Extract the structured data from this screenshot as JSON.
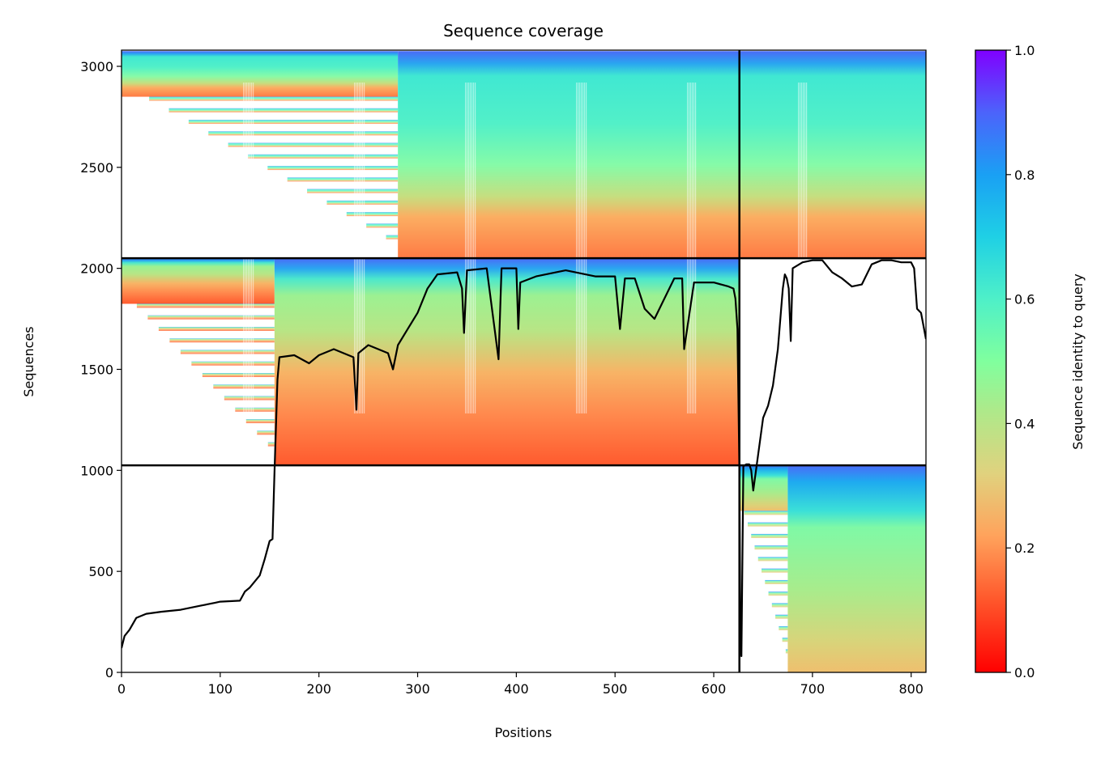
{
  "chart_data": {
    "type": "heatmap",
    "title": "Sequence coverage",
    "xlabel": "Positions",
    "ylabel": "Sequences",
    "xlim": [
      0,
      815
    ],
    "ylim": [
      0,
      3080
    ],
    "x_ticks": [
      "0",
      "100",
      "200",
      "300",
      "400",
      "500",
      "600",
      "700",
      "800"
    ],
    "y_ticks": [
      "0",
      "500",
      "1000",
      "1500",
      "2000",
      "2500",
      "3000"
    ],
    "colorbar": {
      "label": "Sequence identity to query",
      "colormap": "rainbow_r",
      "range": [
        0,
        1
      ],
      "ticks": [
        "0.0",
        "0.2",
        "0.4",
        "0.6",
        "0.8",
        "1.0"
      ]
    },
    "chain_boundary_x": 626,
    "block_boundaries_y": [
      1025,
      2050
    ],
    "blocks": [
      {
        "rows": [
          0,
          1025
        ],
        "x_range": [
          626,
          815
        ],
        "coverage_start_x": 626,
        "identity_top": 0.85,
        "identity_bottom": 0.3,
        "full_coverage_from_x": 675
      },
      {
        "rows": [
          1025,
          2050
        ],
        "x_range": [
          0,
          626
        ],
        "identity_top": 0.85,
        "identity_bottom": 0.1,
        "full_coverage_from_x": 155
      },
      {
        "rows": [
          2050,
          3075
        ],
        "x_range": [
          0,
          815
        ],
        "identity_top": 0.85,
        "identity_bottom": 0.15,
        "full_coverage_from_x": 280
      }
    ],
    "coverage_line": {
      "x": [
        0,
        3,
        8,
        15,
        25,
        40,
        60,
        80,
        95,
        100,
        120,
        125,
        130,
        140,
        145,
        150,
        153,
        155,
        158,
        160,
        175,
        190,
        200,
        215,
        225,
        235,
        238,
        240,
        250,
        270,
        275,
        280,
        290,
        300,
        310,
        320,
        340,
        345,
        347,
        350,
        370,
        382,
        385,
        400,
        402,
        404,
        420,
        450,
        480,
        500,
        505,
        510,
        520,
        530,
        540,
        560,
        568,
        570,
        580,
        600,
        615,
        620,
        622,
        624,
        626,
        627,
        628,
        630,
        633,
        636,
        638,
        640,
        645,
        650,
        655,
        660,
        665,
        670,
        672,
        674,
        676,
        678,
        680,
        690,
        700,
        710,
        720,
        730,
        740,
        750,
        760,
        770,
        780,
        790,
        800,
        803,
        806,
        810,
        815
      ],
      "y": [
        120,
        180,
        210,
        270,
        290,
        300,
        310,
        330,
        345,
        350,
        355,
        400,
        420,
        480,
        560,
        650,
        660,
        1000,
        1450,
        1560,
        1570,
        1530,
        1570,
        1600,
        1580,
        1560,
        1300,
        1580,
        1620,
        1580,
        1500,
        1620,
        1700,
        1780,
        1900,
        1970,
        1980,
        1900,
        1680,
        1990,
        2000,
        1550,
        2000,
        2000,
        1700,
        1930,
        1960,
        1990,
        1960,
        1960,
        1700,
        1950,
        1950,
        1800,
        1750,
        1950,
        1950,
        1600,
        1930,
        1930,
        1910,
        1900,
        1850,
        1700,
        1000,
        200,
        80,
        1020,
        1030,
        1030,
        1000,
        900,
        1080,
        1260,
        1320,
        1420,
        1600,
        1900,
        1970,
        1950,
        1900,
        1640,
        2000,
        2030,
        2040,
        2040,
        1980,
        1950,
        1910,
        1920,
        2020,
        2040,
        2040,
        2030,
        2030,
        2000,
        1800,
        1780,
        1650
      ]
    }
  }
}
